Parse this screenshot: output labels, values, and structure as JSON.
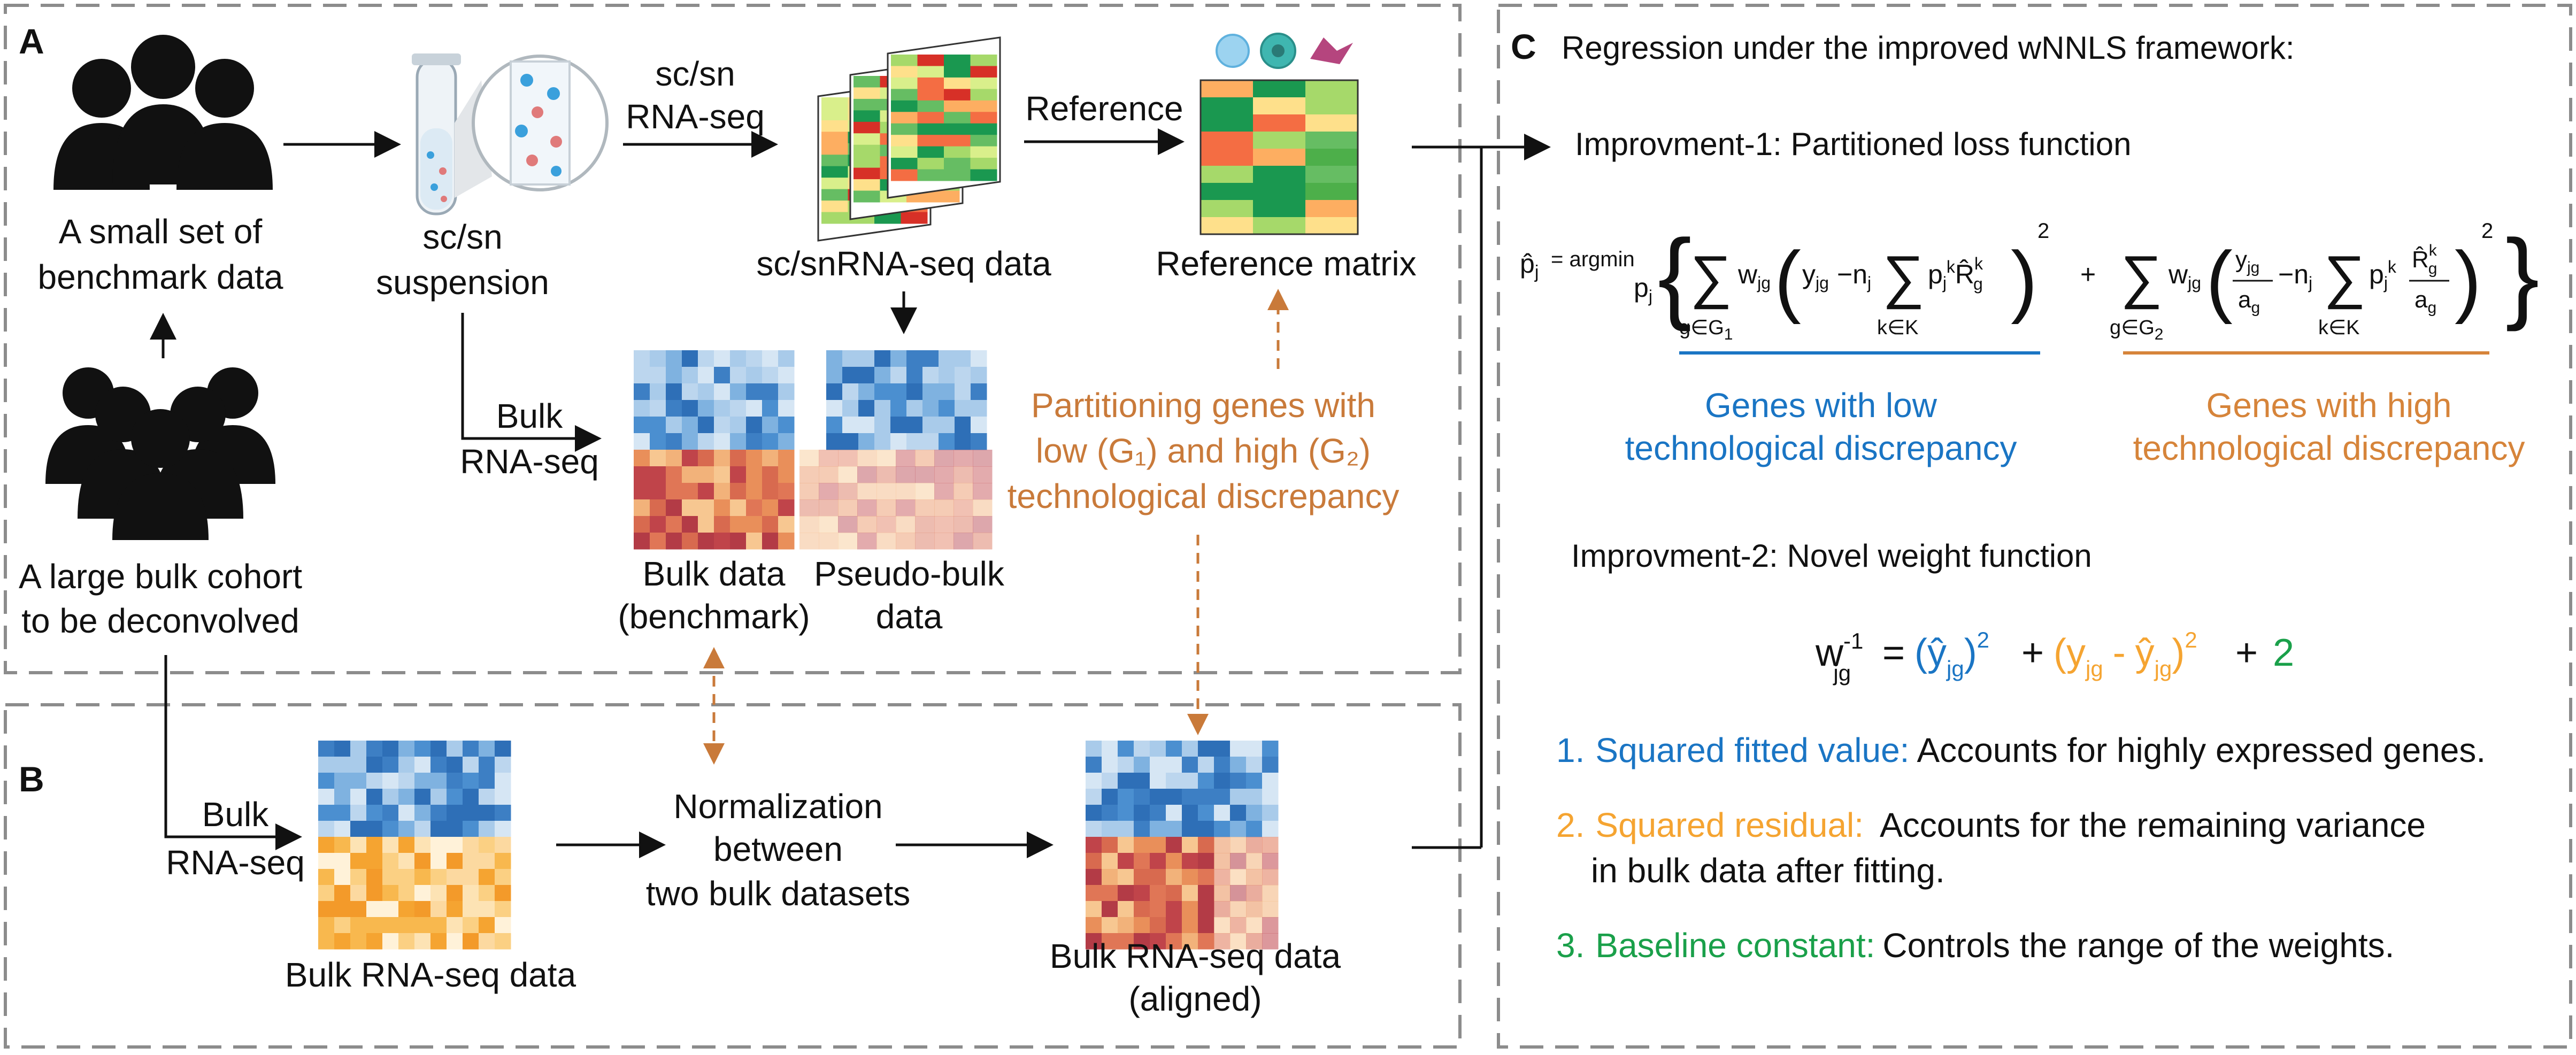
{
  "colors": {
    "blue": "#1a75c4",
    "orange": "#d6843a",
    "green": "#1aa04a",
    "weight_orange": "#f5a431",
    "dash": "#8c8c8c",
    "arrow_dash": "#c97a3a"
  },
  "panel_a": {
    "label": "A",
    "small_set_line1": "A small set of",
    "small_set_line2": "benchmark data",
    "large_cohort_line1": "A large bulk cohort",
    "large_cohort_line2": "to be deconvolved",
    "suspension_line1": "sc/sn",
    "suspension_line2": "suspension",
    "scsn_seq_line1": "sc/sn",
    "scsn_seq_line2": "RNA-seq",
    "scrna_data": "sc/snRNA-seq data",
    "reference": "Reference",
    "reference_matrix": "Reference matrix",
    "bulk_seq_line1": "Bulk",
    "bulk_seq_line2": "RNA-seq",
    "bulk_data_line1": "Bulk data",
    "bulk_data_line2": "(benchmark)",
    "pseudo_line1": "Pseudo-bulk",
    "pseudo_line2": "data",
    "partition_line1": "Partitioning genes with",
    "partition_line2": "low (G₁) and high (G₂)",
    "partition_line3": "technological discrepancy"
  },
  "panel_b": {
    "label": "B",
    "bulk_seq_line1": "Bulk",
    "bulk_seq_line2": "RNA-seq",
    "bulk_data": "Bulk RNA-seq data",
    "norm_line1": "Normalization",
    "norm_line2": "between",
    "norm_line3": "two bulk datasets",
    "aligned_line1": "Bulk RNA-seq data",
    "aligned_line2": "(aligned)"
  },
  "panel_c": {
    "label": "C",
    "title": "Regression under the improved wNNLS framework:",
    "imp1": "Improvment-1: Partitioned loss function",
    "low_line1": "Genes with low",
    "low_line2": "technological discrepancy",
    "high_line1": "Genes with high",
    "high_line2": "technological discrepancy",
    "imp2": "Improvment-2: Novel weight function",
    "item1_num": "1.",
    "item1_head": "Squared fitted value:",
    "item1_text": "Accounts for highly expressed genes.",
    "item2_num": "2.",
    "item2_head": "Squared residual:",
    "item2_text": "Accounts for the remaining variance",
    "item2_text2": "in bulk data after fitting.",
    "item3_num": "3.",
    "item3_head": "Baseline constant:",
    "item3_text": "Controls the range of the weights."
  },
  "formula": {
    "p_hat": "p̂",
    "j": "j",
    "eq_argmin": "= argmin",
    "sum": "∑",
    "g_in_g1": "g∈G",
    "one": "1",
    "two": "2",
    "k_in_k": "k∈K",
    "w": "w",
    "jg": "jg",
    "y": "y",
    "minus_n": "−n",
    "p": "p",
    "k": "k",
    "r_hat": "R̂",
    "g": "g",
    "a": "a",
    "sq": "2",
    "plus": "+",
    "w_inv_sup": "-1",
    "equals": "=",
    "paren_open": "(",
    "paren_close": ")",
    "y_hat": "ŷ",
    "minus": "-",
    "const": "2"
  }
}
